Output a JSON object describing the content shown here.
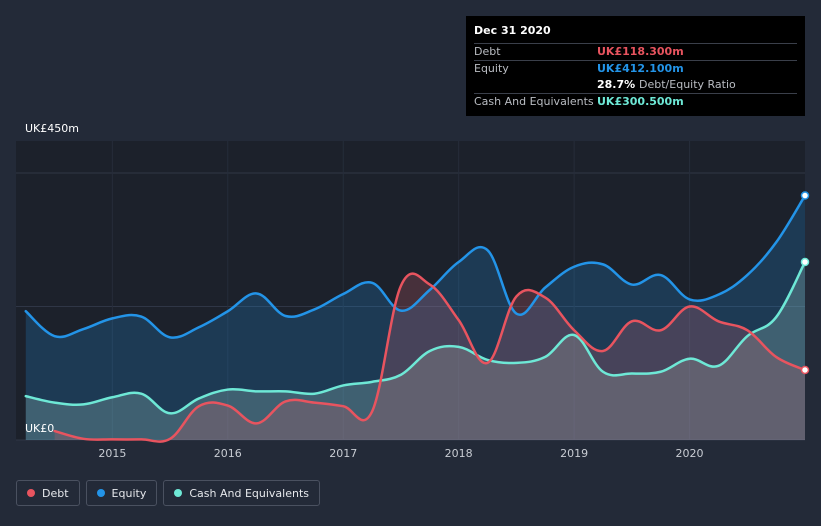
{
  "tooltip": {
    "date": "Dec 31 2020",
    "rows": [
      {
        "label": "Debt",
        "value": "UK£118.300m",
        "color": "#e8545f"
      },
      {
        "label": "Equity",
        "value": "UK£412.100m",
        "color": "#2394e8"
      },
      {
        "label": "",
        "value": "28.7%",
        "suffix": "Debt/Equity Ratio",
        "color": "#ffffff"
      },
      {
        "label": "Cash And Equivalents",
        "value": "UK£300.500m",
        "color": "#6ee8d6"
      }
    ]
  },
  "legend": [
    {
      "label": "Debt",
      "color": "#e8545f"
    },
    {
      "label": "Equity",
      "color": "#2394e8"
    },
    {
      "label": "Cash And Equivalents",
      "color": "#6ee8d6"
    }
  ],
  "chart_data": {
    "type": "area",
    "ylabel_top": "UK£450m",
    "ylabel_bottom": "UK£0",
    "ylim": [
      0,
      450
    ],
    "xlim": [
      2014.2,
      2021.0
    ],
    "x_ticks": [
      "2015",
      "2016",
      "2017",
      "2018",
      "2019",
      "2020"
    ],
    "grid": true,
    "legend_position": "bottom-left",
    "series": [
      {
        "name": "Equity",
        "color": "#2394e8",
        "points": [
          [
            2014.25,
            217
          ],
          [
            2014.5,
            175
          ],
          [
            2014.75,
            187
          ],
          [
            2015.0,
            205
          ],
          [
            2015.25,
            208
          ],
          [
            2015.5,
            173
          ],
          [
            2015.75,
            190
          ],
          [
            2016.0,
            217
          ],
          [
            2016.25,
            247
          ],
          [
            2016.5,
            209
          ],
          [
            2016.75,
            220
          ],
          [
            2017.0,
            246
          ],
          [
            2017.25,
            265
          ],
          [
            2017.5,
            218
          ],
          [
            2017.75,
            253
          ],
          [
            2018.0,
            300
          ],
          [
            2018.25,
            320
          ],
          [
            2018.5,
            213
          ],
          [
            2018.75,
            257
          ],
          [
            2019.0,
            292
          ],
          [
            2019.25,
            296
          ],
          [
            2019.5,
            262
          ],
          [
            2019.75,
            278
          ],
          [
            2020.0,
            237
          ],
          [
            2020.25,
            245
          ],
          [
            2020.5,
            278
          ],
          [
            2020.75,
            333
          ],
          [
            2021.0,
            412
          ]
        ]
      },
      {
        "name": "Cash And Equivalents",
        "color": "#6ee8d6",
        "points": [
          [
            2014.25,
            74
          ],
          [
            2014.5,
            63
          ],
          [
            2014.75,
            60
          ],
          [
            2015.0,
            72
          ],
          [
            2015.25,
            78
          ],
          [
            2015.5,
            45
          ],
          [
            2015.75,
            70
          ],
          [
            2016.0,
            85
          ],
          [
            2016.25,
            82
          ],
          [
            2016.5,
            82
          ],
          [
            2016.75,
            78
          ],
          [
            2017.0,
            92
          ],
          [
            2017.25,
            98
          ],
          [
            2017.5,
            110
          ],
          [
            2017.75,
            150
          ],
          [
            2018.0,
            157
          ],
          [
            2018.25,
            135
          ],
          [
            2018.5,
            130
          ],
          [
            2018.75,
            140
          ],
          [
            2019.0,
            177
          ],
          [
            2019.25,
            115
          ],
          [
            2019.5,
            112
          ],
          [
            2019.75,
            115
          ],
          [
            2020.0,
            137
          ],
          [
            2020.25,
            125
          ],
          [
            2020.5,
            175
          ],
          [
            2020.75,
            207
          ],
          [
            2021.0,
            300
          ]
        ]
      },
      {
        "name": "Debt",
        "color": "#e8545f",
        "points": [
          [
            2014.5,
            15
          ],
          [
            2014.75,
            2
          ],
          [
            2015.0,
            1
          ],
          [
            2015.25,
            1
          ],
          [
            2015.5,
            2
          ],
          [
            2015.75,
            57
          ],
          [
            2016.0,
            58
          ],
          [
            2016.25,
            28
          ],
          [
            2016.5,
            65
          ],
          [
            2016.75,
            63
          ],
          [
            2017.0,
            57
          ],
          [
            2017.25,
            48
          ],
          [
            2017.5,
            260
          ],
          [
            2017.75,
            262
          ],
          [
            2018.0,
            202
          ],
          [
            2018.25,
            130
          ],
          [
            2018.5,
            242
          ],
          [
            2018.75,
            240
          ],
          [
            2019.0,
            185
          ],
          [
            2019.25,
            150
          ],
          [
            2019.5,
            200
          ],
          [
            2019.75,
            185
          ],
          [
            2020.0,
            225
          ],
          [
            2020.25,
            200
          ],
          [
            2020.5,
            185
          ],
          [
            2020.75,
            140
          ],
          [
            2021.0,
            118
          ]
        ]
      }
    ]
  }
}
